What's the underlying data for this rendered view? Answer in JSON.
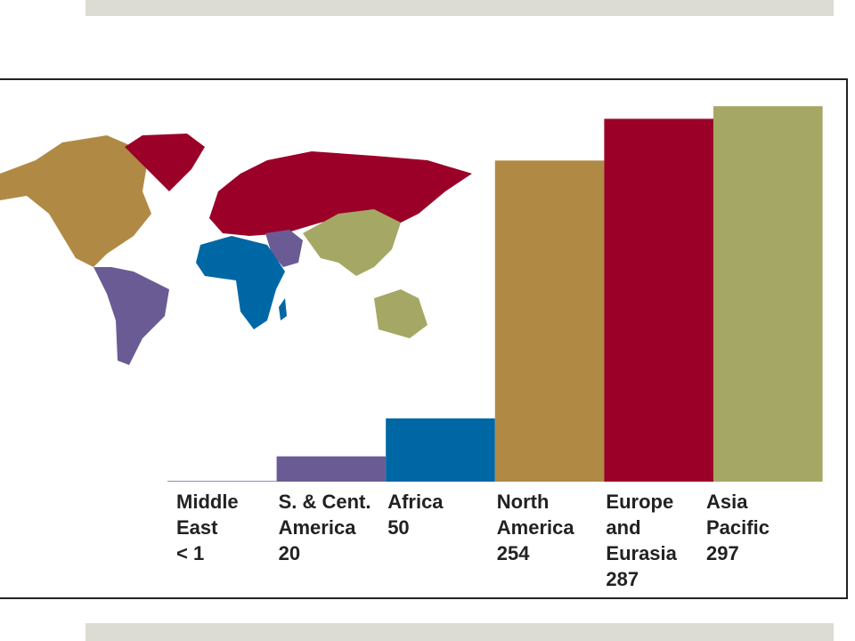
{
  "chart_data": {
    "type": "bar",
    "categories": [
      "Middle\nEast",
      "S. & Cent.\nAmerica",
      "Africa",
      "North\nAmerica",
      "Europe\nand\nEurasia",
      "Asia\nPacific"
    ],
    "values": [
      0.5,
      20,
      50,
      254,
      287,
      297
    ],
    "value_labels": [
      "< 1",
      "20",
      "50",
      "254",
      "287",
      "297"
    ],
    "colors": [
      "#6b5b95",
      "#6b5b95",
      "#0067a5",
      "#b08a45",
      "#9b0028",
      "#a5a864"
    ]
  }
}
